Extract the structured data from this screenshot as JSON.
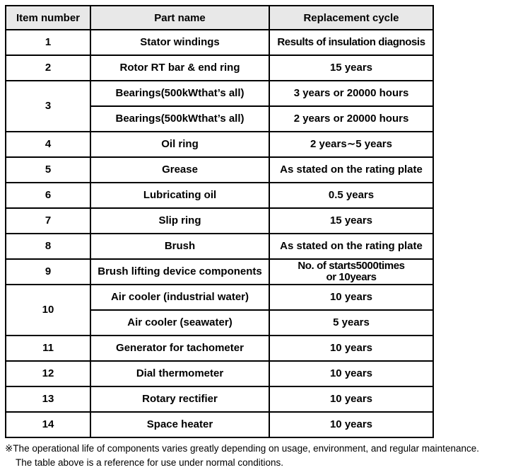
{
  "table": {
    "headers": [
      "Item number",
      "Part name",
      "Replacement cycle"
    ],
    "rows": [
      {
        "item": "1",
        "parts": [
          {
            "name": "Stator windings",
            "cycle": "Results of insulation diagnosis"
          }
        ]
      },
      {
        "item": "2",
        "parts": [
          {
            "name": "Rotor RT bar & end ring",
            "cycle": "15 years"
          }
        ]
      },
      {
        "item": "3",
        "parts": [
          {
            "name": "Bearings(500kWthat’s all)",
            "cycle": "3 years or 20000 hours"
          },
          {
            "name": "Bearings(500kWthat’s all)",
            "cycle": "2 years or 20000 hours"
          }
        ]
      },
      {
        "item": "4",
        "parts": [
          {
            "name": "Oil ring",
            "cycle": "2 years∼5 years"
          }
        ]
      },
      {
        "item": "5",
        "parts": [
          {
            "name": "Grease",
            "cycle": "As stated on the rating plate"
          }
        ]
      },
      {
        "item": "6",
        "parts": [
          {
            "name": "Lubricating oil",
            "cycle": "0.5 years"
          }
        ]
      },
      {
        "item": "7",
        "parts": [
          {
            "name": "Slip ring",
            "cycle": "15 years"
          }
        ]
      },
      {
        "item": "8",
        "parts": [
          {
            "name": "Brush",
            "cycle": "As stated on the rating plate"
          }
        ]
      },
      {
        "item": "9",
        "parts": [
          {
            "name": "Brush lifting device components",
            "cycle": "No. of starts5000times\nor 10years"
          }
        ]
      },
      {
        "item": "10",
        "parts": [
          {
            "name": "Air cooler (industrial water)",
            "cycle": "10 years"
          },
          {
            "name": "Air cooler (seawater)",
            "cycle": "5 years"
          }
        ]
      },
      {
        "item": "11",
        "parts": [
          {
            "name": "Generator for tachometer",
            "cycle": "10 years"
          }
        ]
      },
      {
        "item": "12",
        "parts": [
          {
            "name": "Dial thermometer",
            "cycle": "10 years"
          }
        ]
      },
      {
        "item": "13",
        "parts": [
          {
            "name": "Rotary rectifier",
            "cycle": "10 years"
          }
        ]
      },
      {
        "item": "14",
        "parts": [
          {
            "name": "Space heater",
            "cycle": "10 years"
          }
        ]
      }
    ]
  },
  "footnote": {
    "line1": "※The operational life of components varies greatly depending on usage, environment, and regular maintenance.",
    "line2": "The table above is a reference for use under normal conditions."
  },
  "colors": {
    "header_bg": "#e8e8e8",
    "border": "#000000",
    "text": "#000000"
  }
}
